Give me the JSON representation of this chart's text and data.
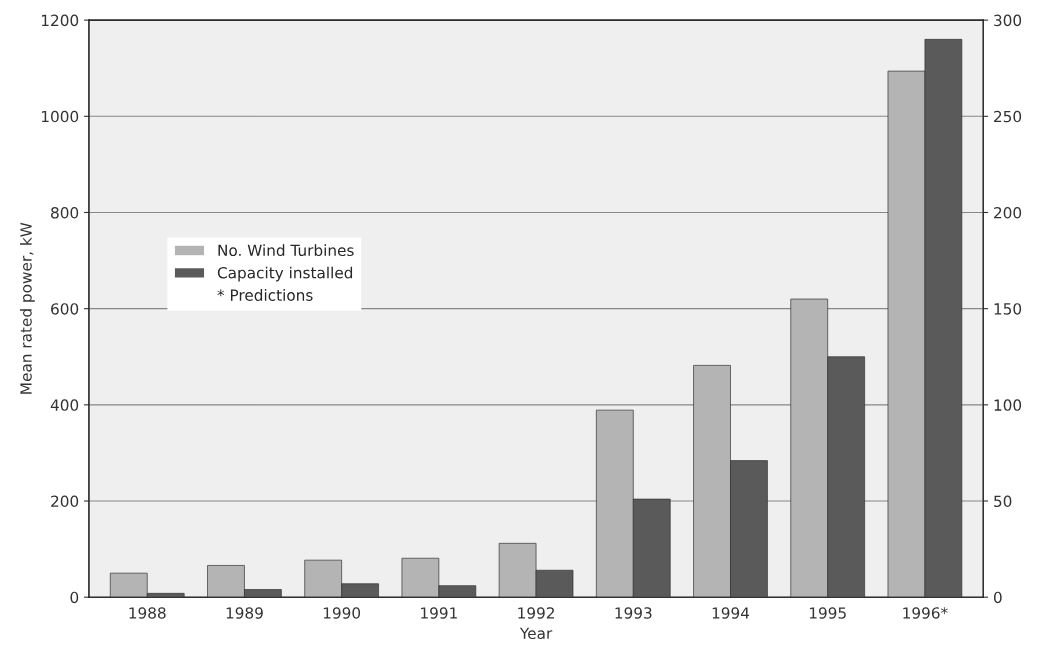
{
  "chart_data": {
    "type": "bar",
    "xlabel": "Year",
    "ylabel": "Mean rated power, kW",
    "categories": [
      "1988",
      "1989",
      "1990",
      "1991",
      "1992",
      "1993",
      "1994",
      "1995",
      "1996*"
    ],
    "series": [
      {
        "name": "No. Wind Turbines",
        "color": "#b4b4b4",
        "values": [
          50,
          66,
          77,
          81,
          112,
          389,
          482,
          620,
          1094
        ]
      },
      {
        "name": "Capacity installed",
        "color": "#5a5a5a",
        "axis": "y2",
        "values": [
          2,
          4,
          7,
          6,
          14,
          51,
          71,
          125,
          290
        ]
      }
    ],
    "ylim": [
      0,
      1200
    ],
    "yticks": [
      0,
      200,
      400,
      600,
      800,
      1000,
      1200
    ],
    "y2lim": [
      0,
      300
    ],
    "y2ticks": [
      0,
      50,
      100,
      150,
      200,
      250,
      300
    ],
    "grid": "y",
    "legend": "left",
    "annotations": [
      "* Predictions"
    ]
  }
}
